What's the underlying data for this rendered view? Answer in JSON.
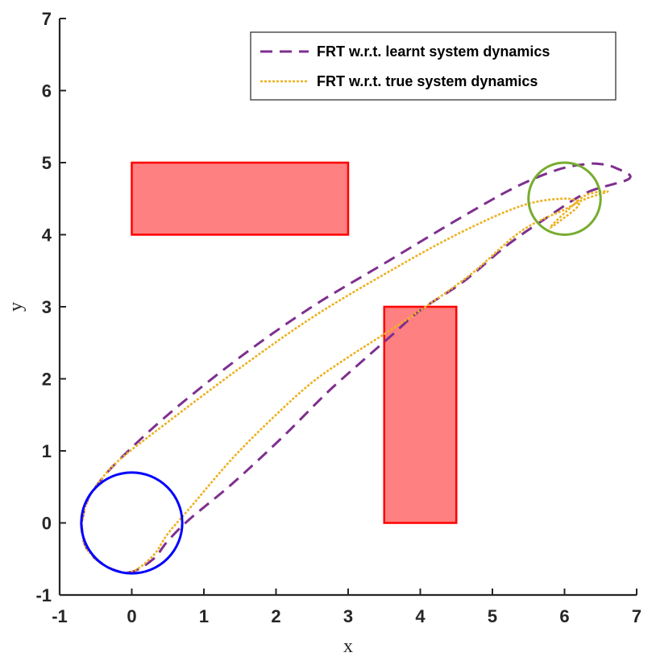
{
  "chart_data": {
    "type": "line",
    "xlabel": "x",
    "ylabel": "y",
    "xlim": [
      -1,
      7
    ],
    "ylim": [
      -1,
      7
    ],
    "xticks": [
      -1,
      0,
      1,
      2,
      3,
      4,
      5,
      6,
      7
    ],
    "yticks": [
      -1,
      0,
      1,
      2,
      3,
      4,
      5,
      6,
      7
    ],
    "grid": false,
    "legend_position": "top-right",
    "legend": [
      "FRT w.r.t. learnt system dynamics",
      "FRT w.r.t. true system dynamics"
    ],
    "obstacles": [
      {
        "x": 0,
        "y": 4,
        "width": 3,
        "height": 1,
        "fill": "#ff8080",
        "stroke": "#ff0000"
      },
      {
        "x": 3.5,
        "y": 0,
        "width": 1,
        "height": 3,
        "fill": "#ff8080",
        "stroke": "#ff0000"
      }
    ],
    "start_circle": {
      "center": [
        0,
        0
      ],
      "radius": 0.7,
      "color": "#0000ff"
    },
    "goal_circle": {
      "center": [
        6,
        4.5
      ],
      "radius": 0.5,
      "color": "#77ac30"
    },
    "series": [
      {
        "name": "FRT w.r.t. learnt system dynamics",
        "color": "#7e2f8e",
        "style": "dashed",
        "x": [
          -0.7,
          -0.62,
          -0.5,
          -0.2,
          0.5,
          1.5,
          2.5,
          3.5,
          4.5,
          5.3,
          5.9,
          6.3,
          6.5,
          6.7,
          6.9,
          6.3,
          5.7,
          5.2,
          4.6,
          4.0,
          3.6,
          3.2,
          2.7,
          2.1,
          1.4,
          0.8,
          0.5,
          0.3,
          0.0,
          -0.25,
          -0.5,
          -0.65,
          -0.7
        ],
        "y": [
          0.0,
          0.3,
          0.5,
          0.85,
          1.5,
          2.3,
          3.0,
          3.6,
          4.2,
          4.65,
          4.9,
          4.98,
          4.98,
          4.93,
          4.78,
          4.58,
          4.2,
          3.85,
          3.35,
          2.95,
          2.6,
          2.25,
          1.8,
          1.2,
          0.55,
          0.05,
          -0.25,
          -0.5,
          -0.68,
          -0.65,
          -0.5,
          -0.3,
          0.0
        ]
      },
      {
        "name": "FRT w.r.t. true system dynamics",
        "color": "#edb120",
        "style": "dotted",
        "x": [
          -0.7,
          -0.62,
          -0.5,
          -0.2,
          0.5,
          1.5,
          2.5,
          3.5,
          4.5,
          5.4,
          6.0,
          6.2,
          5.95,
          5.8,
          6.0,
          6.3,
          6.6,
          6.3,
          6.0,
          5.4,
          4.7,
          4.0,
          3.5,
          3.0,
          2.5,
          2.0,
          1.4,
          0.8,
          0.5,
          0.3,
          0.0,
          -0.25,
          -0.5,
          -0.65,
          -0.7
        ],
        "y": [
          0.0,
          0.3,
          0.5,
          0.85,
          1.4,
          2.15,
          2.85,
          3.45,
          4.0,
          4.4,
          4.5,
          4.42,
          4.2,
          4.1,
          4.3,
          4.55,
          4.6,
          4.5,
          4.35,
          4.05,
          3.45,
          2.95,
          2.62,
          2.3,
          1.95,
          1.5,
          0.9,
          0.2,
          -0.15,
          -0.45,
          -0.68,
          -0.65,
          -0.5,
          -0.3,
          0.0
        ]
      }
    ]
  }
}
